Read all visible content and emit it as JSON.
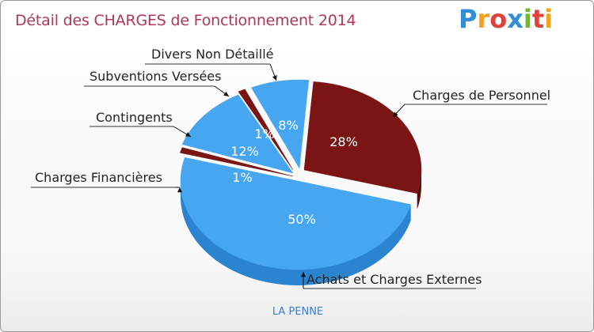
{
  "title": "Détail des CHARGES de Fonctionnement 2014",
  "logo": {
    "text": "Proxiti",
    "letters": [
      "P",
      "r",
      "o",
      "x",
      "i",
      "t",
      "i"
    ],
    "colors": [
      "#2f8fd8",
      "#f2a21d",
      "#e0413a",
      "#2f8fd8",
      "#71b935",
      "#e0413a",
      "#f2a21d"
    ]
  },
  "subtitle": "LA PENNE",
  "chart_data": {
    "type": "pie",
    "title": "Détail des CHARGES de Fonctionnement 2014",
    "slices": [
      {
        "label": "Charges de Personnel",
        "value": 28,
        "pct_label": "28%",
        "color": "#7b1414",
        "side": "#5a0d0d"
      },
      {
        "label": "Achats et Charges Externes",
        "value": 50,
        "pct_label": "50%",
        "color": "#47a6f0",
        "side": "#2b84cf"
      },
      {
        "label": "Charges Financières",
        "value": 1,
        "pct_label": "1%",
        "color": "#7b1414",
        "side": "#5a0d0d"
      },
      {
        "label": "Contingents",
        "value": 12,
        "pct_label": "12%",
        "color": "#47a6f0",
        "side": "#2b84cf"
      },
      {
        "label": "Subventions Versées",
        "value": 1,
        "pct_label": "1%",
        "color": "#7b1414",
        "side": "#5a0d0d"
      },
      {
        "label": "Divers Non Détaillé",
        "value": 8,
        "pct_label": "8%",
        "color": "#47a6f0",
        "side": "#2b84cf"
      }
    ]
  }
}
